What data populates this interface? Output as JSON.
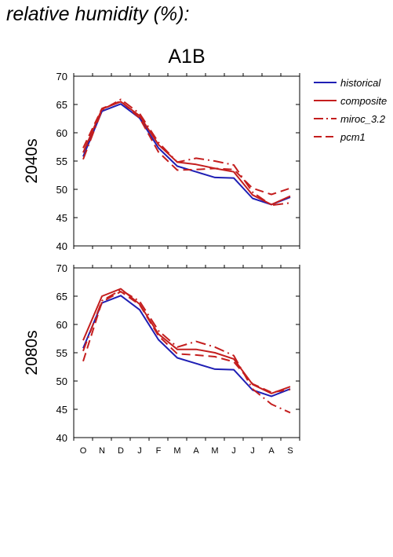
{
  "heading": "relative humidity (%):",
  "colors": {
    "historical": "#1f1fb4",
    "models": "#c41e1e",
    "frame": "#000000"
  },
  "chart_data": {
    "type": "line",
    "title": "A1B",
    "x": [
      "O",
      "N",
      "D",
      "J",
      "F",
      "M",
      "A",
      "M",
      "J",
      "J",
      "A",
      "S"
    ],
    "ylim": [
      40,
      70
    ],
    "yticks": [
      40,
      45,
      50,
      55,
      60,
      65,
      70
    ],
    "legend": {
      "placement": "right",
      "entries": [
        {
          "name": "historical",
          "style": "solid",
          "color": "#1f1fb4"
        },
        {
          "name": "composite",
          "style": "solid",
          "color": "#c41e1e"
        },
        {
          "name": "miroc_3.2",
          "style": "dashdot",
          "color": "#c41e1e"
        },
        {
          "name": "pcm1",
          "style": "dashed",
          "color": "#c41e1e"
        }
      ]
    },
    "panels": [
      {
        "label": "2040s",
        "series": [
          {
            "name": "historical",
            "values": [
              55.8,
              63.8,
              65.1,
              62.6,
              57.3,
              54.1,
              53.1,
              52.1,
              52.0,
              48.4,
              47.3,
              48.6
            ]
          },
          {
            "name": "composite",
            "values": [
              56.5,
              64.2,
              65.5,
              63.0,
              57.9,
              54.8,
              54.4,
              53.7,
              53.1,
              49.0,
              47.3,
              48.8
            ]
          },
          {
            "name": "miroc_3.2",
            "values": [
              55.3,
              64.0,
              65.9,
              63.4,
              58.3,
              54.8,
              55.5,
              55.0,
              54.3,
              49.5,
              47.2,
              47.6
            ]
          },
          {
            "name": "pcm1",
            "values": [
              57.3,
              64.3,
              65.6,
              62.6,
              56.6,
              53.4,
              53.5,
              53.7,
              53.5,
              50.2,
              49.1,
              50.2
            ]
          }
        ]
      },
      {
        "label": "2080s",
        "series": [
          {
            "name": "historical",
            "values": [
              55.8,
              63.8,
              65.1,
              62.6,
              57.3,
              54.1,
              53.1,
              52.1,
              52.0,
              48.4,
              47.3,
              48.6
            ]
          },
          {
            "name": "composite",
            "values": [
              57.2,
              65.0,
              66.3,
              63.6,
              58.3,
              55.6,
              55.6,
              55.0,
              53.9,
              49.4,
              47.8,
              49.0
            ]
          },
          {
            "name": "miroc_3.2",
            "values": [
              55.3,
              64.2,
              66.1,
              64.1,
              58.9,
              56.0,
              57.0,
              56.0,
              54.5,
              48.6,
              45.9,
              44.4
            ]
          },
          {
            "name": "pcm1",
            "values": [
              53.5,
              64.0,
              65.8,
              63.5,
              58.0,
              54.8,
              54.6,
              54.3,
              53.4,
              49.5,
              48.0,
              48.5
            ]
          }
        ]
      }
    ]
  }
}
